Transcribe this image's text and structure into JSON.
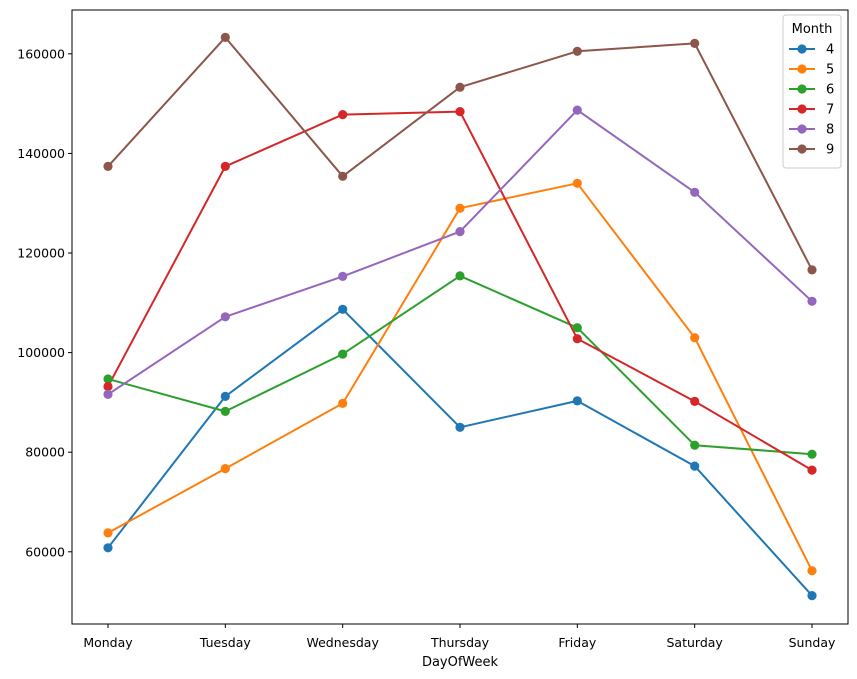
{
  "chart_data": {
    "type": "line",
    "xlabel": "DayOfWeek",
    "ylabel": "",
    "categories": [
      "Monday",
      "Tuesday",
      "Wednesday",
      "Thursday",
      "Friday",
      "Saturday",
      "Sunday"
    ],
    "ylim": [
      45500,
      168800
    ],
    "yticks": [
      60000,
      80000,
      100000,
      120000,
      140000,
      160000
    ],
    "ytick_labels": [
      "60000",
      "80000",
      "100000",
      "120000",
      "140000",
      "160000"
    ],
    "grid": false,
    "legend": {
      "title": "Month",
      "position": "top-right"
    },
    "series": [
      {
        "name": "4",
        "color": "#1f77b4",
        "values": [
          60800,
          91200,
          108700,
          85000,
          90300,
          77200,
          51200
        ]
      },
      {
        "name": "5",
        "color": "#ff7f0e",
        "values": [
          63800,
          76700,
          89800,
          129000,
          134000,
          103000,
          56200
        ]
      },
      {
        "name": "6",
        "color": "#2ca02c",
        "values": [
          94700,
          88200,
          99700,
          115400,
          105000,
          81400,
          79600
        ]
      },
      {
        "name": "7",
        "color": "#d62728",
        "values": [
          93200,
          137400,
          147800,
          148400,
          102800,
          90200,
          76400
        ]
      },
      {
        "name": "8",
        "color": "#9467bd",
        "values": [
          91600,
          107200,
          115300,
          124300,
          148700,
          132200,
          110300
        ]
      },
      {
        "name": "9",
        "color": "#8c564b",
        "values": [
          137400,
          163300,
          135400,
          153300,
          160500,
          162100,
          116600
        ]
      }
    ]
  }
}
